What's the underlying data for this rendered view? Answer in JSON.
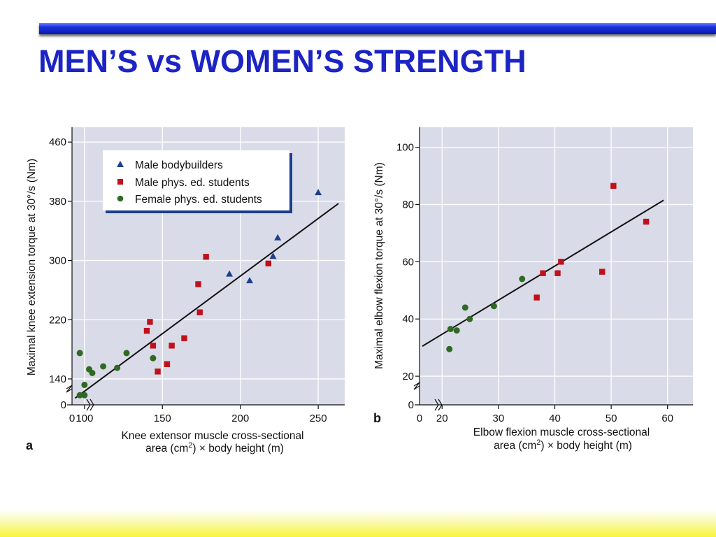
{
  "slide": {
    "title": "MEN’S vs WOMEN’S STRENGTH"
  },
  "colors": {
    "title": "#1c24c4",
    "plot_bg": "#dadbe8",
    "male_bodybuilders": "#1d3f8f",
    "male_students": "#c0111b",
    "female_students": "#2f6a22"
  },
  "chart_data": [
    {
      "type": "scatter",
      "panel_label": "a",
      "xlabel": [
        "Knee extensor muscle cross-sectional",
        "area (cm",
        "2",
        ") × body height (m)"
      ],
      "ylabel": "Maximal knee extension torque at 30°/s (Nm)",
      "x_ticks": [
        "0",
        "100",
        "150",
        "200",
        "250"
      ],
      "y_ticks": [
        "0",
        "140",
        "220",
        "300",
        "380",
        "460"
      ],
      "xlim": [
        92,
        267
      ],
      "ylim": [
        105,
        480
      ],
      "axis_break": true,
      "legend": {
        "position": "top-left",
        "entries": [
          "Male bodybuilders",
          "Male phys. ed. students",
          "Female phys. ed. students"
        ]
      },
      "series": [
        {
          "name": "Male bodybuilders",
          "marker": "triangle",
          "points": [
            [
              193,
              282
            ],
            [
              206,
              273
            ],
            [
              221,
              306
            ],
            [
              224,
              331
            ],
            [
              250,
              392
            ]
          ]
        },
        {
          "name": "Male phys. ed. students",
          "marker": "square",
          "points": [
            [
              140,
              205
            ],
            [
              142,
              217
            ],
            [
              144,
              185
            ],
            [
              147,
              150
            ],
            [
              153,
              160
            ],
            [
              156,
              185
            ],
            [
              164,
              195
            ],
            [
              173,
              268
            ],
            [
              174,
              230
            ],
            [
              178,
              305
            ],
            [
              218,
              296
            ]
          ]
        },
        {
          "name": "Female phys. ed. students",
          "marker": "circle",
          "points": [
            [
              97,
              175
            ],
            [
              97,
              118
            ],
            [
              100,
              118
            ],
            [
              100,
              132
            ],
            [
              103,
              153
            ],
            [
              105,
              148
            ],
            [
              112,
              157
            ],
            [
              121,
              155
            ],
            [
              127,
              175
            ],
            [
              144,
              168
            ]
          ]
        }
      ],
      "trend_line": [
        [
          94,
          114
        ],
        [
          263,
          377
        ]
      ]
    },
    {
      "type": "scatter",
      "panel_label": "b",
      "xlabel": [
        "Elbow flexion muscle cross-sectional",
        "area (cm",
        "2",
        ") × body height (m)"
      ],
      "ylabel": "Maximal elbow flexion torque at 30°/s (Nm)",
      "x_ticks": [
        "0",
        "20",
        "30",
        "40",
        "50",
        "60"
      ],
      "y_ticks": [
        "0",
        "20",
        "40",
        "60",
        "80",
        "100"
      ],
      "xlim": [
        16,
        64.5
      ],
      "ylim": [
        10,
        107
      ],
      "axis_break": true,
      "series": [
        {
          "name": "Male phys. ed. students",
          "marker": "square",
          "points": [
            [
              36.8,
              47.5
            ],
            [
              37.9,
              56
            ],
            [
              40.5,
              56
            ],
            [
              41.1,
              60
            ],
            [
              48.4,
              56.5
            ],
            [
              50.4,
              86.5
            ],
            [
              56.2,
              74
            ]
          ]
        },
        {
          "name": "Female phys. ed. students",
          "marker": "circle",
          "points": [
            [
              21.3,
              29.5
            ],
            [
              21.5,
              36.5
            ],
            [
              22.6,
              36
            ],
            [
              24.1,
              44
            ],
            [
              24.9,
              40
            ],
            [
              29.2,
              44.5
            ],
            [
              34.2,
              54
            ]
          ]
        }
      ],
      "trend_line": [
        [
          16.5,
          30.5
        ],
        [
          59.3,
          81.5
        ]
      ]
    }
  ]
}
